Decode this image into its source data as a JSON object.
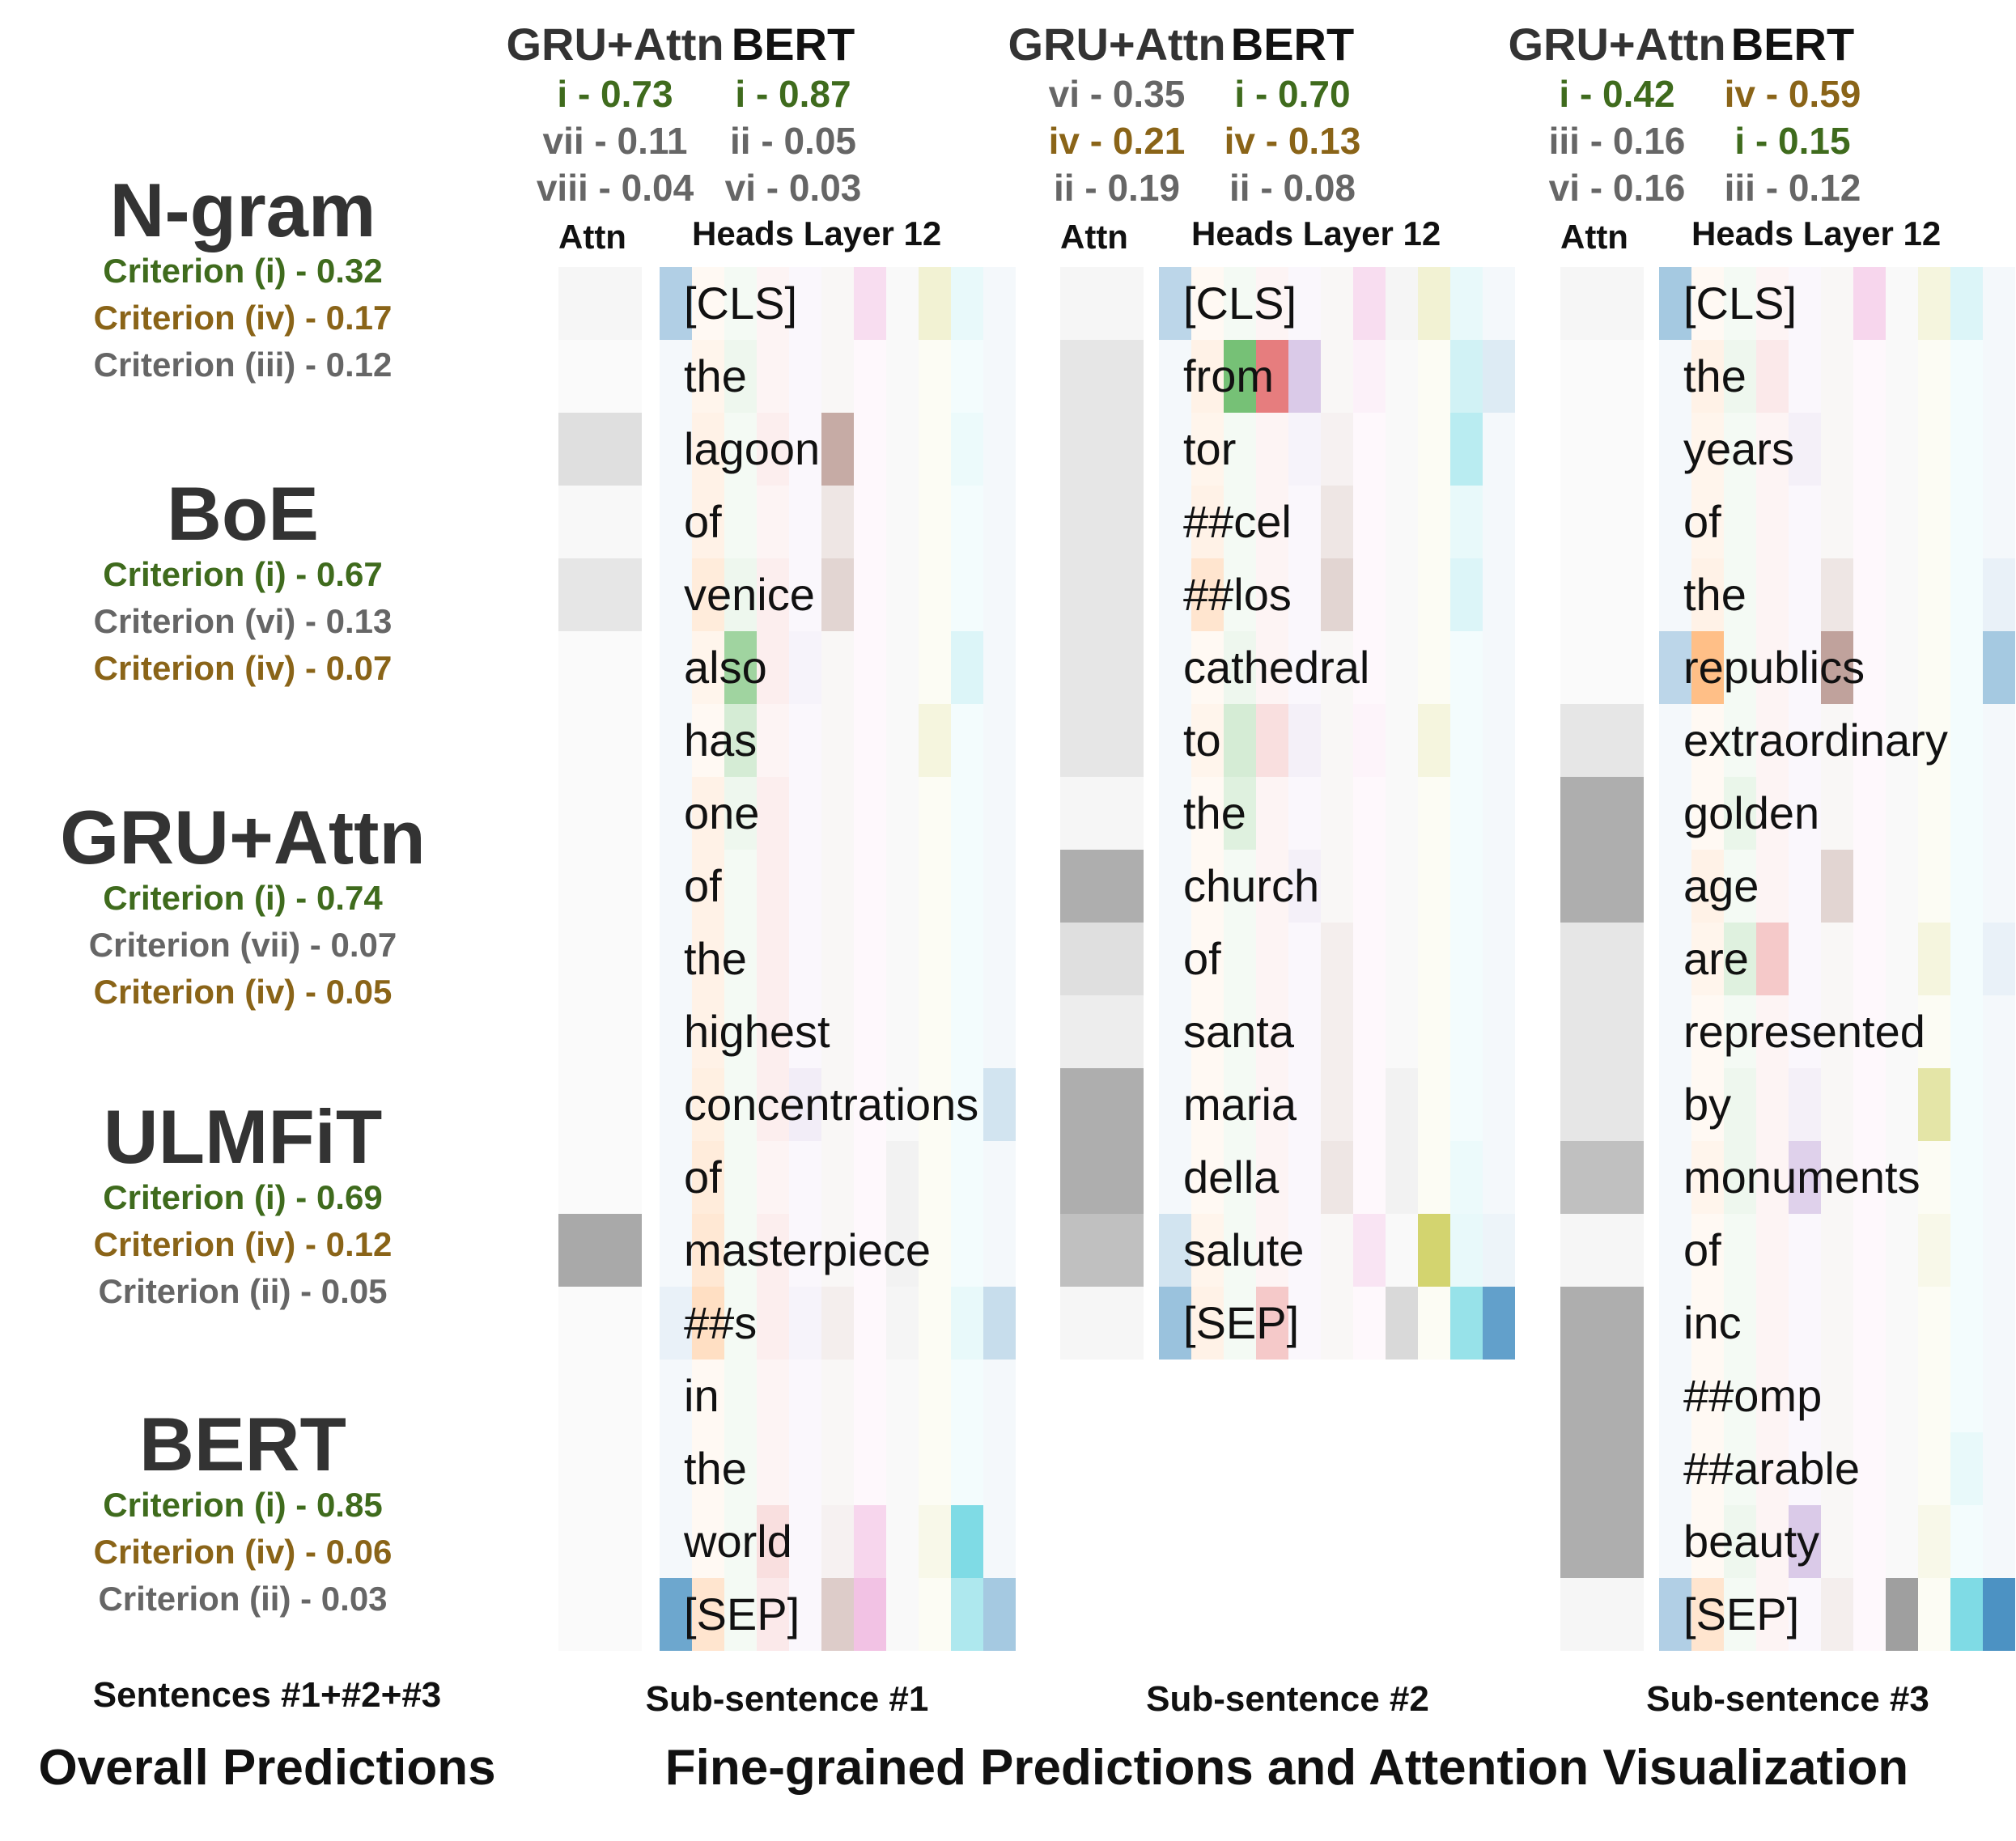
{
  "colors": {
    "criterion_i": "#3f6b1d",
    "criterion_iv": "#8a6418",
    "other": "#666666",
    "attn_gray": "#9e9e9e",
    "head_palette": [
      "#1f77b4",
      "#ff7f0e",
      "#2ca02c",
      "#d62728",
      "#9467bd",
      "#8c564b",
      "#e377c2",
      "#7f7f7f",
      "#bcbd22",
      "#17becf"
    ]
  },
  "overall": {
    "models": [
      {
        "name": "N-gram",
        "criteria": [
          {
            "label": "Criterion (i) - 0.32",
            "color": "green"
          },
          {
            "label": "Criterion (iv) - 0.17",
            "color": "brown"
          },
          {
            "label": "Criterion (iii) - 0.12",
            "color": "gray"
          }
        ]
      },
      {
        "name": "BoE",
        "criteria": [
          {
            "label": "Criterion (i) - 0.67",
            "color": "green"
          },
          {
            "label": "Criterion (vi) - 0.13",
            "color": "gray"
          },
          {
            "label": "Criterion (iv) - 0.07",
            "color": "brown"
          }
        ]
      },
      {
        "name": "GRU+Attn",
        "criteria": [
          {
            "label": "Criterion (i) - 0.74",
            "color": "green"
          },
          {
            "label": "Criterion (vii) - 0.07",
            "color": "gray"
          },
          {
            "label": "Criterion (iv) - 0.05",
            "color": "brown"
          }
        ]
      },
      {
        "name": "ULMFiT",
        "criteria": [
          {
            "label": "Criterion (i) - 0.69",
            "color": "green"
          },
          {
            "label": "Criterion (iv) - 0.12",
            "color": "brown"
          },
          {
            "label": "Criterion (ii) - 0.05",
            "color": "gray"
          }
        ]
      },
      {
        "name": "BERT",
        "criteria": [
          {
            "label": "Criterion (i) - 0.85",
            "color": "green"
          },
          {
            "label": "Criterion (iv) - 0.06",
            "color": "brown"
          },
          {
            "label": "Criterion (ii) - 0.03",
            "color": "gray"
          }
        ]
      }
    ],
    "sentences_caption": "Sentences #1+#2+#3",
    "caption": "Overall Predictions"
  },
  "fine_caption": "Fine-grained Predictions and Attention Visualization",
  "subsentences": [
    {
      "caption": "Sub-sentence #1",
      "attn_label": "Attn",
      "heads_label": "Heads Layer 12",
      "gru": {
        "name": "GRU+Attn",
        "preds": [
          {
            "label": "i - 0.73",
            "color": "green"
          },
          {
            "label": "vii - 0.11",
            "color": "gray"
          },
          {
            "label": "viii - 0.04",
            "color": "gray"
          }
        ]
      },
      "bert": {
        "name": "BERT",
        "preds": [
          {
            "label": "i - 0.87",
            "color": "green"
          },
          {
            "label": "ii - 0.05",
            "color": "gray"
          },
          {
            "label": "vi - 0.03",
            "color": "gray"
          }
        ]
      },
      "tokens": [
        "[CLS]",
        "the",
        "lagoon",
        "of",
        "venice",
        "also",
        "has",
        "one",
        "of",
        "the",
        "highest",
        "concentrations",
        "of",
        "masterpiece",
        "##s",
        "in",
        "the",
        "world",
        "[SEP]"
      ],
      "attn": [
        0.05,
        0.03,
        0.18,
        0.04,
        0.14,
        0.03,
        0.03,
        0.03,
        0.03,
        0.03,
        0.03,
        0.03,
        0.03,
        0.48,
        0.03,
        0.03,
        0.03,
        0.03,
        0.03
      ],
      "heads": [
        [
          0.35,
          0.05,
          0.05,
          0.05,
          0.05,
          0.05,
          0.25,
          0.05,
          0.2,
          0.1,
          0.05
        ],
        [
          0.05,
          0.08,
          0.08,
          0.05,
          0.05,
          0.05,
          0.05,
          0.05,
          0.05,
          0.05,
          0.05
        ],
        [
          0.05,
          0.1,
          0.05,
          0.08,
          0.05,
          0.5,
          0.05,
          0.05,
          0.05,
          0.08,
          0.05
        ],
        [
          0.05,
          0.1,
          0.05,
          0.05,
          0.05,
          0.15,
          0.05,
          0.05,
          0.05,
          0.05,
          0.05
        ],
        [
          0.05,
          0.15,
          0.08,
          0.08,
          0.05,
          0.25,
          0.05,
          0.05,
          0.05,
          0.05,
          0.05
        ],
        [
          0.05,
          0.08,
          0.45,
          0.08,
          0.08,
          0.05,
          0.05,
          0.05,
          0.05,
          0.15,
          0.05
        ],
        [
          0.05,
          0.05,
          0.2,
          0.05,
          0.05,
          0.05,
          0.05,
          0.05,
          0.15,
          0.05,
          0.05
        ],
        [
          0.05,
          0.1,
          0.08,
          0.08,
          0.05,
          0.05,
          0.05,
          0.05,
          0.05,
          0.05,
          0.05
        ],
        [
          0.05,
          0.1,
          0.05,
          0.08,
          0.05,
          0.05,
          0.05,
          0.05,
          0.05,
          0.05,
          0.05
        ],
        [
          0.05,
          0.1,
          0.05,
          0.08,
          0.05,
          0.05,
          0.05,
          0.05,
          0.05,
          0.05,
          0.05
        ],
        [
          0.05,
          0.1,
          0.05,
          0.08,
          0.05,
          0.05,
          0.05,
          0.05,
          0.05,
          0.05,
          0.05
        ],
        [
          0.05,
          0.12,
          0.05,
          0.08,
          0.12,
          0.05,
          0.05,
          0.05,
          0.05,
          0.05,
          0.2
        ],
        [
          0.05,
          0.15,
          0.05,
          0.05,
          0.05,
          0.05,
          0.05,
          0.1,
          0.05,
          0.05,
          0.05
        ],
        [
          0.05,
          0.18,
          0.05,
          0.08,
          0.05,
          0.05,
          0.05,
          0.1,
          0.05,
          0.05,
          0.05
        ],
        [
          0.1,
          0.25,
          0.05,
          0.08,
          0.08,
          0.1,
          0.05,
          0.08,
          0.05,
          0.1,
          0.25
        ],
        [
          0.05,
          0.05,
          0.05,
          0.05,
          0.05,
          0.05,
          0.05,
          0.05,
          0.05,
          0.05,
          0.05
        ],
        [
          0.05,
          0.05,
          0.05,
          0.05,
          0.05,
          0.05,
          0.05,
          0.05,
          0.05,
          0.05,
          0.05
        ],
        [
          0.05,
          0.05,
          0.05,
          0.15,
          0.05,
          0.08,
          0.3,
          0.05,
          0.1,
          0.55,
          0.05
        ],
        [
          0.65,
          0.2,
          0.05,
          0.1,
          0.05,
          0.3,
          0.45,
          0.05,
          0.05,
          0.35,
          0.4
        ]
      ]
    },
    {
      "caption": "Sub-sentence #2",
      "attn_label": "Attn",
      "heads_label": "Heads Layer 12",
      "gru": {
        "name": "GRU+Attn",
        "preds": [
          {
            "label": "vi - 0.35",
            "color": "gray"
          },
          {
            "label": "iv - 0.21",
            "color": "brown"
          },
          {
            "label": "ii - 0.19",
            "color": "gray"
          }
        ]
      },
      "bert": {
        "name": "BERT",
        "preds": [
          {
            "label": "i - 0.70",
            "color": "green"
          },
          {
            "label": "iv - 0.13",
            "color": "brown"
          },
          {
            "label": "ii - 0.08",
            "color": "gray"
          }
        ]
      },
      "tokens": [
        "[CLS]",
        "from",
        "tor",
        "##cel",
        "##los",
        "cathedral",
        "to",
        "the",
        "church",
        "of",
        "santa",
        "maria",
        "della",
        "salute",
        "[SEP]"
      ],
      "attn": [
        0.05,
        0.14,
        0.14,
        0.14,
        0.14,
        0.14,
        0.14,
        0.05,
        0.45,
        0.18,
        0.1,
        0.45,
        0.45,
        0.35,
        0.05
      ],
      "heads": [
        [
          0.3,
          0.05,
          0.05,
          0.05,
          0.05,
          0.05,
          0.25,
          0.08,
          0.2,
          0.1,
          0.05
        ],
        [
          0.05,
          0.1,
          0.65,
          0.6,
          0.35,
          0.05,
          0.1,
          0.05,
          0.05,
          0.2,
          0.15
        ],
        [
          0.05,
          0.08,
          0.05,
          0.05,
          0.08,
          0.08,
          0.05,
          0.05,
          0.05,
          0.3,
          0.05
        ],
        [
          0.05,
          0.1,
          0.05,
          0.05,
          0.05,
          0.15,
          0.05,
          0.05,
          0.05,
          0.1,
          0.05
        ],
        [
          0.05,
          0.2,
          0.05,
          0.05,
          0.05,
          0.25,
          0.05,
          0.05,
          0.05,
          0.15,
          0.05
        ],
        [
          0.05,
          0.05,
          0.08,
          0.05,
          0.05,
          0.05,
          0.05,
          0.05,
          0.05,
          0.05,
          0.05
        ],
        [
          0.05,
          0.08,
          0.2,
          0.15,
          0.1,
          0.05,
          0.08,
          0.05,
          0.15,
          0.05,
          0.05
        ],
        [
          0.05,
          0.05,
          0.15,
          0.05,
          0.05,
          0.05,
          0.05,
          0.05,
          0.05,
          0.05,
          0.05
        ],
        [
          0.05,
          0.05,
          0.05,
          0.05,
          0.1,
          0.05,
          0.05,
          0.05,
          0.05,
          0.05,
          0.05
        ],
        [
          0.05,
          0.05,
          0.05,
          0.05,
          0.05,
          0.1,
          0.05,
          0.05,
          0.05,
          0.05,
          0.05
        ],
        [
          0.05,
          0.05,
          0.05,
          0.05,
          0.05,
          0.1,
          0.05,
          0.05,
          0.05,
          0.05,
          0.05
        ],
        [
          0.05,
          0.05,
          0.05,
          0.05,
          0.05,
          0.1,
          0.05,
          0.1,
          0.05,
          0.05,
          0.05
        ],
        [
          0.05,
          0.05,
          0.05,
          0.05,
          0.05,
          0.15,
          0.05,
          0.1,
          0.05,
          0.08,
          0.05
        ],
        [
          0.2,
          0.08,
          0.05,
          0.05,
          0.05,
          0.05,
          0.2,
          0.05,
          0.65,
          0.1,
          0.08
        ],
        [
          0.45,
          0.1,
          0.05,
          0.25,
          0.05,
          0.05,
          0.05,
          0.3,
          0.05,
          0.45,
          0.7
        ]
      ]
    },
    {
      "caption": "Sub-sentence #3",
      "attn_label": "Attn",
      "heads_label": "Heads Layer 12",
      "gru": {
        "name": "GRU+Attn",
        "preds": [
          {
            "label": "i - 0.42",
            "color": "green"
          },
          {
            "label": "iii - 0.16",
            "color": "gray"
          },
          {
            "label": "vi - 0.16",
            "color": "gray"
          }
        ]
      },
      "bert": {
        "name": "BERT",
        "preds": [
          {
            "label": "iv - 0.59",
            "color": "brown"
          },
          {
            "label": "i - 0.15",
            "color": "green"
          },
          {
            "label": "iii - 0.12",
            "color": "gray"
          }
        ]
      },
      "tokens": [
        "[CLS]",
        "the",
        "years",
        "of",
        "the",
        "republics",
        "extraordinary",
        "golden",
        "age",
        "are",
        "represented",
        "by",
        "monuments",
        "of",
        "inc",
        "##omp",
        "##arable",
        "beauty",
        "[SEP]"
      ],
      "attn": [
        0.05,
        0.03,
        0.03,
        0.03,
        0.03,
        0.03,
        0.14,
        0.45,
        0.45,
        0.14,
        0.14,
        0.14,
        0.35,
        0.05,
        0.45,
        0.45,
        0.45,
        0.45,
        0.05
      ],
      "heads": [
        [
          0.4,
          0.05,
          0.05,
          0.05,
          0.05,
          0.05,
          0.3,
          0.05,
          0.15,
          0.15,
          0.05
        ],
        [
          0.05,
          0.1,
          0.08,
          0.1,
          0.05,
          0.05,
          0.05,
          0.05,
          0.05,
          0.05,
          0.05
        ],
        [
          0.05,
          0.08,
          0.05,
          0.05,
          0.1,
          0.05,
          0.05,
          0.05,
          0.05,
          0.05,
          0.05
        ],
        [
          0.05,
          0.08,
          0.05,
          0.05,
          0.05,
          0.05,
          0.05,
          0.05,
          0.05,
          0.05,
          0.05
        ],
        [
          0.05,
          0.1,
          0.05,
          0.05,
          0.05,
          0.15,
          0.05,
          0.05,
          0.05,
          0.05,
          0.1
        ],
        [
          0.3,
          0.5,
          0.05,
          0.05,
          0.05,
          0.55,
          0.05,
          0.05,
          0.05,
          0.05,
          0.4
        ],
        [
          0.05,
          0.05,
          0.05,
          0.05,
          0.05,
          0.05,
          0.05,
          0.05,
          0.05,
          0.05,
          0.05
        ],
        [
          0.05,
          0.05,
          0.1,
          0.05,
          0.05,
          0.05,
          0.05,
          0.05,
          0.05,
          0.05,
          0.05
        ],
        [
          0.05,
          0.1,
          0.05,
          0.05,
          0.05,
          0.25,
          0.05,
          0.05,
          0.05,
          0.05,
          0.05
        ],
        [
          0.05,
          0.08,
          0.15,
          0.25,
          0.05,
          0.05,
          0.05,
          0.05,
          0.15,
          0.05,
          0.1
        ],
        [
          0.05,
          0.05,
          0.05,
          0.05,
          0.05,
          0.05,
          0.05,
          0.05,
          0.05,
          0.05,
          0.05
        ],
        [
          0.05,
          0.05,
          0.08,
          0.05,
          0.1,
          0.05,
          0.05,
          0.05,
          0.4,
          0.05,
          0.05
        ],
        [
          0.05,
          0.08,
          0.08,
          0.05,
          0.3,
          0.05,
          0.05,
          0.05,
          0.05,
          0.05,
          0.05
        ],
        [
          0.05,
          0.05,
          0.05,
          0.05,
          0.05,
          0.05,
          0.05,
          0.05,
          0.1,
          0.05,
          0.05
        ],
        [
          0.05,
          0.05,
          0.05,
          0.05,
          0.05,
          0.05,
          0.05,
          0.05,
          0.05,
          0.05,
          0.05
        ],
        [
          0.05,
          0.05,
          0.05,
          0.05,
          0.05,
          0.05,
          0.05,
          0.05,
          0.05,
          0.05,
          0.05
        ],
        [
          0.05,
          0.05,
          0.05,
          0.05,
          0.05,
          0.05,
          0.05,
          0.05,
          0.05,
          0.1,
          0.05
        ],
        [
          0.05,
          0.05,
          0.08,
          0.05,
          0.35,
          0.05,
          0.05,
          0.05,
          0.1,
          0.05,
          0.05
        ],
        [
          0.35,
          0.2,
          0.05,
          0.05,
          0.05,
          0.1,
          0.05,
          0.75,
          0.05,
          0.55,
          0.8
        ]
      ]
    }
  ]
}
